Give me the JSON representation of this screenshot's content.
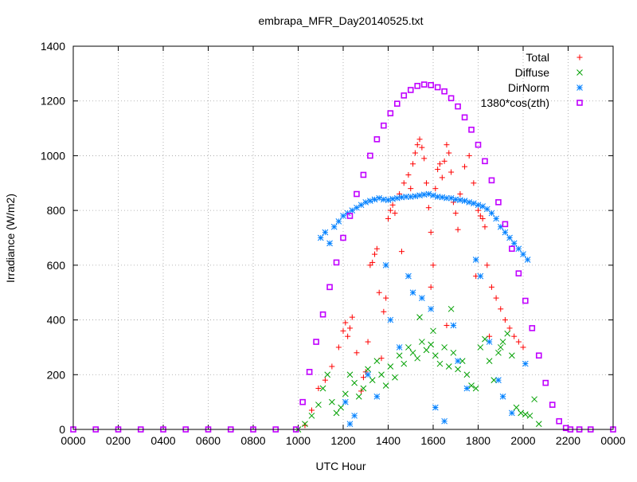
{
  "chart_data": {
    "type": "scatter",
    "title": "embrapa_MFR_Day20140525.txt",
    "xlabel": "UTC Hour",
    "ylabel": "Irradiance (W/m2)",
    "xlim": [
      0,
      24
    ],
    "ylim": [
      0,
      1400
    ],
    "grid": true,
    "legend_position": "top-right",
    "xticks": [
      {
        "value": 0,
        "label": "0000"
      },
      {
        "value": 2,
        "label": "0200"
      },
      {
        "value": 4,
        "label": "0400"
      },
      {
        "value": 6,
        "label": "0600"
      },
      {
        "value": 8,
        "label": "0800"
      },
      {
        "value": 10,
        "label": "1000"
      },
      {
        "value": 12,
        "label": "1200"
      },
      {
        "value": 14,
        "label": "1400"
      },
      {
        "value": 16,
        "label": "1600"
      },
      {
        "value": 18,
        "label": "1800"
      },
      {
        "value": 20,
        "label": "2000"
      },
      {
        "value": 22,
        "label": "2200"
      },
      {
        "value": 24,
        "label": "0000"
      }
    ],
    "yticks": [
      {
        "value": 0,
        "label": "0"
      },
      {
        "value": 200,
        "label": "200"
      },
      {
        "value": 400,
        "label": "400"
      },
      {
        "value": 600,
        "label": "600"
      },
      {
        "value": 800,
        "label": "800"
      },
      {
        "value": 1000,
        "label": "1000"
      },
      {
        "value": 1200,
        "label": "1200"
      },
      {
        "value": 1400,
        "label": "1400"
      }
    ],
    "series": [
      {
        "name": "Total",
        "marker": "plus",
        "color": "#ff0000",
        "x": [
          10.0,
          10.3,
          10.6,
          10.9,
          11.2,
          11.5,
          11.8,
          12.0,
          12.1,
          12.2,
          12.3,
          12.4,
          12.6,
          12.8,
          13.0,
          13.1,
          13.2,
          13.3,
          13.4,
          13.5,
          13.6,
          13.8,
          14.0,
          14.1,
          14.2,
          14.3,
          14.5,
          14.7,
          14.9,
          15.0,
          15.1,
          15.2,
          15.3,
          15.4,
          15.5,
          15.6,
          15.7,
          15.8,
          15.9,
          16.0,
          16.1,
          16.2,
          16.3,
          16.4,
          16.5,
          16.6,
          16.7,
          16.8,
          16.9,
          17.0,
          17.2,
          17.4,
          17.6,
          17.8,
          18.0,
          18.1,
          18.2,
          18.3,
          18.4,
          18.6,
          18.8,
          19.0,
          19.2,
          19.4,
          19.6,
          19.8,
          20.0,
          13.9,
          14.6,
          15.9,
          17.1,
          17.9,
          12.9,
          13.7,
          16.6,
          18.5
        ],
        "y": [
          0,
          15,
          70,
          150,
          180,
          230,
          300,
          360,
          390,
          340,
          370,
          410,
          280,
          140,
          210,
          320,
          600,
          610,
          640,
          660,
          500,
          430,
          770,
          800,
          820,
          790,
          860,
          900,
          930,
          880,
          970,
          1010,
          1040,
          1060,
          1030,
          990,
          900,
          810,
          720,
          600,
          880,
          950,
          970,
          920,
          980,
          1040,
          1010,
          940,
          830,
          790,
          860,
          960,
          1000,
          900,
          800,
          780,
          770,
          740,
          600,
          520,
          480,
          440,
          400,
          370,
          340,
          320,
          300,
          480,
          650,
          520,
          730,
          560,
          190,
          260,
          380,
          340
        ]
      },
      {
        "name": "Diffuse",
        "marker": "cross",
        "color": "#00a000",
        "x": [
          10.0,
          10.3,
          10.6,
          10.9,
          11.1,
          11.3,
          11.5,
          11.7,
          11.9,
          12.1,
          12.3,
          12.5,
          12.7,
          12.9,
          13.1,
          13.3,
          13.5,
          13.7,
          13.9,
          14.1,
          14.3,
          14.5,
          14.7,
          14.9,
          15.1,
          15.3,
          15.5,
          15.7,
          15.9,
          16.1,
          16.3,
          16.5,
          16.7,
          16.9,
          17.1,
          17.3,
          17.5,
          17.7,
          17.9,
          18.1,
          18.3,
          18.5,
          18.7,
          18.9,
          19.1,
          19.3,
          19.5,
          19.7,
          19.9,
          20.1,
          20.3,
          20.5,
          20.7,
          15.4,
          16.0,
          16.8,
          19.0
        ],
        "y": [
          0,
          20,
          50,
          90,
          150,
          200,
          100,
          60,
          80,
          130,
          200,
          170,
          120,
          150,
          220,
          180,
          250,
          200,
          160,
          230,
          190,
          270,
          240,
          300,
          280,
          260,
          320,
          290,
          310,
          270,
          240,
          300,
          230,
          280,
          220,
          250,
          200,
          160,
          150,
          300,
          330,
          250,
          180,
          280,
          320,
          350,
          270,
          80,
          60,
          55,
          50,
          110,
          20,
          410,
          360,
          440,
          300
        ]
      },
      {
        "name": "DirNorm",
        "marker": "star",
        "color": "#0080ff",
        "x": [
          11.0,
          11.2,
          11.4,
          11.6,
          11.8,
          12.0,
          12.2,
          12.4,
          12.6,
          12.8,
          13.0,
          13.2,
          13.4,
          13.6,
          13.8,
          14.0,
          14.2,
          14.4,
          14.6,
          14.8,
          15.0,
          15.2,
          15.4,
          15.6,
          15.8,
          16.0,
          16.2,
          16.4,
          16.6,
          16.8,
          17.0,
          17.2,
          17.4,
          17.6,
          17.8,
          18.0,
          18.2,
          18.4,
          18.6,
          18.8,
          19.0,
          19.2,
          19.4,
          19.6,
          19.8,
          20.0,
          20.2,
          12.1,
          12.5,
          13.1,
          13.5,
          14.1,
          14.5,
          15.1,
          15.5,
          16.1,
          16.5,
          17.1,
          17.5,
          18.1,
          18.5,
          19.1,
          19.5,
          20.1,
          12.3,
          13.9,
          14.9,
          15.9,
          16.9,
          17.9,
          18.9
        ],
        "y": [
          700,
          720,
          680,
          740,
          760,
          780,
          790,
          800,
          810,
          820,
          830,
          835,
          840,
          845,
          840,
          838,
          842,
          845,
          848,
          850,
          850,
          852,
          855,
          858,
          860,
          855,
          850,
          848,
          845,
          845,
          840,
          838,
          835,
          830,
          826,
          820,
          815,
          805,
          790,
          770,
          740,
          720,
          700,
          680,
          660,
          640,
          620,
          100,
          50,
          200,
          120,
          400,
          300,
          500,
          480,
          80,
          30,
          250,
          150,
          560,
          320,
          120,
          60,
          240,
          20,
          600,
          560,
          440,
          380,
          620,
          180
        ]
      },
      {
        "name": "1380*cos(zth)",
        "marker": "square",
        "color": "#c000ff",
        "x": [
          0,
          1,
          2,
          3,
          4,
          5,
          6,
          7,
          8,
          9,
          9.9,
          10.2,
          10.5,
          10.8,
          11.1,
          11.4,
          11.7,
          12.0,
          12.3,
          12.6,
          12.9,
          13.2,
          13.5,
          13.8,
          14.1,
          14.4,
          14.7,
          15.0,
          15.3,
          15.6,
          15.9,
          16.2,
          16.5,
          16.8,
          17.1,
          17.4,
          17.7,
          18.0,
          18.3,
          18.6,
          18.9,
          19.2,
          19.5,
          19.8,
          20.1,
          20.4,
          20.7,
          21.0,
          21.3,
          21.6,
          21.9,
          22.1,
          22.5,
          23,
          24
        ],
        "y": [
          0,
          0,
          0,
          0,
          0,
          0,
          0,
          0,
          0,
          0,
          0,
          100,
          210,
          320,
          420,
          520,
          610,
          700,
          780,
          860,
          930,
          1000,
          1060,
          1110,
          1155,
          1190,
          1220,
          1240,
          1255,
          1260,
          1258,
          1250,
          1235,
          1210,
          1180,
          1140,
          1095,
          1040,
          980,
          910,
          830,
          750,
          660,
          570,
          470,
          370,
          270,
          170,
          90,
          30,
          5,
          0,
          0,
          0,
          0
        ]
      }
    ]
  }
}
